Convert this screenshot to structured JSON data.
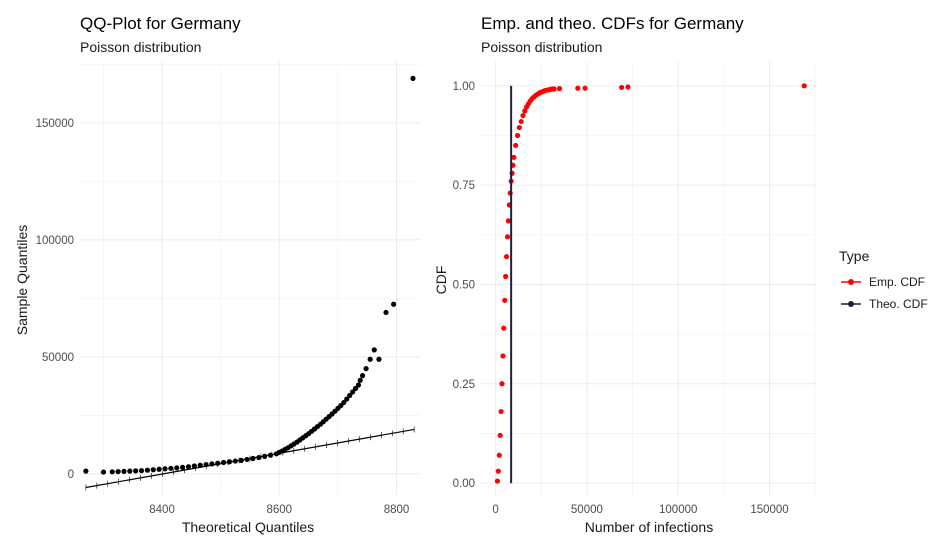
{
  "chart_data": [
    {
      "type": "scatter",
      "title": "QQ-Plot for Germany",
      "subtitle": "Poisson distribution",
      "xlabel": "Theoretical Quantiles",
      "ylabel": "Sample Quantiles",
      "xlim": [
        8260,
        8840
      ],
      "ylim": [
        -9000,
        176000
      ],
      "xticks": [
        8400,
        8600,
        8800
      ],
      "yticks": [
        0,
        50000,
        100000,
        150000
      ],
      "grid": true,
      "series": [
        {
          "kind": "points",
          "color": "#000000",
          "x": [
            8270,
            8300,
            8315,
            8325,
            8335,
            8345,
            8355,
            8365,
            8375,
            8385,
            8395,
            8405,
            8415,
            8425,
            8435,
            8445,
            8455,
            8465,
            8475,
            8485,
            8495,
            8505,
            8515,
            8525,
            8535,
            8545,
            8555,
            8565,
            8575,
            8585,
            8595,
            8600,
            8605,
            8610,
            8615,
            8620,
            8625,
            8630,
            8635,
            8640,
            8645,
            8650,
            8655,
            8660,
            8665,
            8670,
            8675,
            8680,
            8685,
            8690,
            8695,
            8700,
            8705,
            8710,
            8715,
            8720,
            8725,
            8730,
            8735,
            8738,
            8742,
            8748,
            8755,
            8762,
            8770,
            8782,
            8795,
            8828
          ],
          "y": [
            1200,
            800,
            900,
            1000,
            1100,
            1200,
            1300,
            1400,
            1600,
            1800,
            2000,
            2200,
            2400,
            2600,
            2800,
            3100,
            3400,
            3700,
            4000,
            4300,
            4600,
            4900,
            5200,
            5500,
            5800,
            6200,
            6600,
            7000,
            7500,
            8000,
            8600,
            9200,
            9800,
            10500,
            11200,
            12000,
            12800,
            13600,
            14500,
            15400,
            16300,
            17200,
            18200,
            19200,
            20200,
            21200,
            22300,
            23400,
            24500,
            25600,
            26800,
            28000,
            29200,
            30500,
            32000,
            33500,
            35000,
            36500,
            38000,
            40000,
            42000,
            45000,
            49000,
            53000,
            49000,
            69000,
            72500,
            169000
          ]
        },
        {
          "kind": "line",
          "color": "#000000",
          "x": [
            8270,
            8830
          ],
          "y": [
            -5800,
            19000
          ]
        }
      ]
    },
    {
      "type": "scatter",
      "title": "Emp. and theo. CDFs for Germany",
      "subtitle": "Poisson distribution",
      "xlabel": "Number of infections",
      "ylabel": "CDF",
      "xlim": [
        -8000,
        176000
      ],
      "ylim": [
        -0.03,
        1.06
      ],
      "xticks": [
        0,
        50000,
        100000,
        150000
      ],
      "yticks": [
        0.0,
        0.25,
        0.5,
        0.75,
        1.0
      ],
      "ytick_labels": [
        "0.00",
        "0.25",
        "0.50",
        "0.75",
        "1.00"
      ],
      "grid": true,
      "legend": {
        "title": "Type",
        "position": "right",
        "entries": [
          {
            "label": "Emp. CDF",
            "color": "#ff0000"
          },
          {
            "label": "Theo. CDF",
            "color": "#1f1f3f"
          }
        ]
      },
      "series": [
        {
          "name": "Emp. CDF",
          "kind": "points",
          "color": "#ff0000",
          "x": [
            1000,
            1500,
            2000,
            2500,
            3000,
            3500,
            4000,
            4500,
            5000,
            5500,
            6000,
            6500,
            7000,
            7500,
            8000,
            8500,
            9000,
            9500,
            10000,
            11000,
            12000,
            13000,
            14000,
            15000,
            16000,
            17000,
            18000,
            19000,
            20000,
            21000,
            22000,
            23000,
            24000,
            25000,
            26000,
            27000,
            28000,
            29000,
            30000,
            31000,
            32000,
            35000,
            45000,
            49000,
            69000,
            72500,
            169000
          ],
          "y": [
            0.005,
            0.03,
            0.07,
            0.12,
            0.18,
            0.25,
            0.32,
            0.39,
            0.46,
            0.52,
            0.57,
            0.62,
            0.66,
            0.7,
            0.73,
            0.76,
            0.78,
            0.8,
            0.82,
            0.85,
            0.875,
            0.895,
            0.91,
            0.925,
            0.937,
            0.947,
            0.955,
            0.962,
            0.968,
            0.972,
            0.976,
            0.979,
            0.982,
            0.984,
            0.986,
            0.988,
            0.989,
            0.99,
            0.991,
            0.992,
            0.992,
            0.993,
            0.994,
            0.994,
            0.996,
            0.997,
            1.0
          ]
        },
        {
          "name": "Theo. CDF",
          "kind": "vline",
          "color": "#1f1f3f",
          "x": [
            8500,
            8500
          ],
          "y": [
            0.0,
            1.0
          ]
        }
      ]
    }
  ]
}
